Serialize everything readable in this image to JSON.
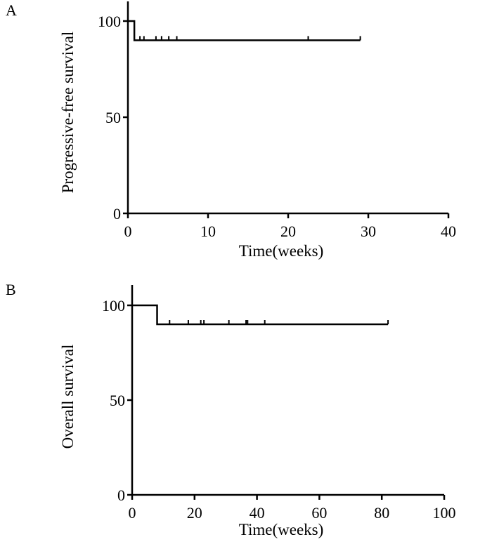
{
  "chart_data": [
    {
      "panel": "A",
      "type": "line",
      "step": true,
      "xlabel": "Time(weeks)",
      "ylabel": "Progressive-free survival",
      "xlim": [
        0,
        40
      ],
      "ylim": [
        0,
        100
      ],
      "xticks": [
        0,
        10,
        20,
        30,
        40
      ],
      "yticks": [
        0,
        50,
        100
      ],
      "grid": false,
      "series": [
        {
          "steps": [
            [
              0,
              100
            ],
            [
              0.8,
              100
            ],
            [
              0.8,
              90
            ],
            [
              29,
              90
            ]
          ],
          "censored": [
            1.5,
            2.0,
            3.5,
            4.2,
            5.1,
            6.1,
            22.5,
            29
          ]
        }
      ]
    },
    {
      "panel": "B",
      "type": "line",
      "step": true,
      "xlabel": "Time(weeks)",
      "ylabel": "Overall survival",
      "xlim": [
        0,
        100
      ],
      "ylim": [
        0,
        100
      ],
      "xticks": [
        0,
        20,
        40,
        60,
        80,
        100
      ],
      "yticks": [
        0,
        50,
        100
      ],
      "grid": false,
      "series": [
        {
          "steps": [
            [
              0,
              100
            ],
            [
              8,
              100
            ],
            [
              8,
              90
            ],
            [
              82,
              90
            ]
          ],
          "censored": [
            12,
            18,
            22,
            23,
            31,
            36.5,
            37,
            42.5,
            82
          ]
        }
      ]
    }
  ]
}
